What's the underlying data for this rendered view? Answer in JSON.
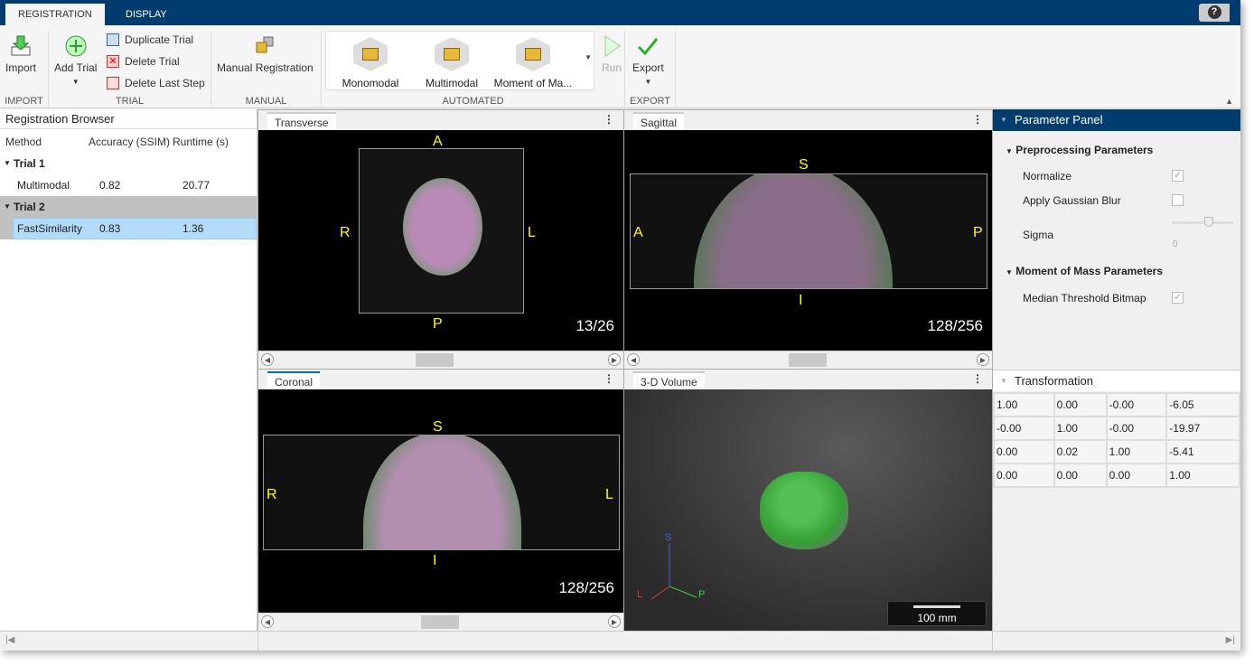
{
  "tabs": [
    {
      "label": "REGISTRATION"
    },
    {
      "label": "DISPLAY"
    }
  ],
  "help_label": "?",
  "toolstrip": {
    "import": {
      "label": "Import",
      "section": "IMPORT"
    },
    "trial": {
      "add": "Add Trial",
      "duplicate": "Duplicate Trial",
      "delete": "Delete Trial",
      "delete_last": "Delete Last Step",
      "section": "TRIAL"
    },
    "manual": {
      "label": "Manual Registration",
      "section": "MANUAL"
    },
    "automated": {
      "items": [
        "Monomodal",
        "Multimodal",
        "Moment of Ma..."
      ],
      "section": "AUTOMATED"
    },
    "run": "Run",
    "export": {
      "label": "Export",
      "section": "EXPORT"
    }
  },
  "browser": {
    "title": "Registration Browser",
    "columns": [
      "Method",
      "Accuracy (SSIM)",
      "Runtime (s)"
    ],
    "trials": [
      {
        "name": "Trial 1",
        "method": "Multimodal",
        "accuracy": "0.82",
        "runtime": "20.77"
      },
      {
        "name": "Trial 2",
        "method": "FastSimilarity",
        "accuracy": "0.83",
        "runtime": "1.36"
      }
    ]
  },
  "views": {
    "transverse": {
      "title": "Transverse",
      "top": "A",
      "bottom": "P",
      "left": "R",
      "right": "L",
      "slice": "13/26"
    },
    "sagittal": {
      "title": "Sagittal",
      "top": "S",
      "bottom": "I",
      "left": "A",
      "right": "P",
      "slice": "128/256"
    },
    "coronal": {
      "title": "Coronal",
      "top": "S",
      "bottom": "I",
      "left": "R",
      "right": "L",
      "slice": "128/256"
    },
    "volume": {
      "title": "3-D Volume",
      "axes": {
        "s": "S",
        "l": "L",
        "p": "P"
      },
      "scale": "100 mm"
    }
  },
  "params": {
    "title": "Parameter Panel",
    "pre": "Preprocessing Parameters",
    "normalize": {
      "label": "Normalize",
      "checked": true
    },
    "blur": {
      "label": "Apply Gaussian Blur",
      "checked": false
    },
    "sigma": {
      "label": "Sigma",
      "value": "0"
    },
    "mom": "Moment of Mass Parameters",
    "median": {
      "label": "Median Threshold Bitmap",
      "checked": true
    }
  },
  "transformation": {
    "title": "Transformation",
    "matrix": [
      [
        "1.00",
        "0.00",
        "-0.00",
        "-6.05"
      ],
      [
        "-0.00",
        "1.00",
        "-0.00",
        "-19.97"
      ],
      [
        "0.00",
        "0.02",
        "1.00",
        "-5.41"
      ],
      [
        "0.00",
        "0.00",
        "0.00",
        "1.00"
      ]
    ]
  },
  "colors": {
    "header": "#003d6e",
    "selection": "#b3dcfb",
    "label": "#ffff00"
  }
}
